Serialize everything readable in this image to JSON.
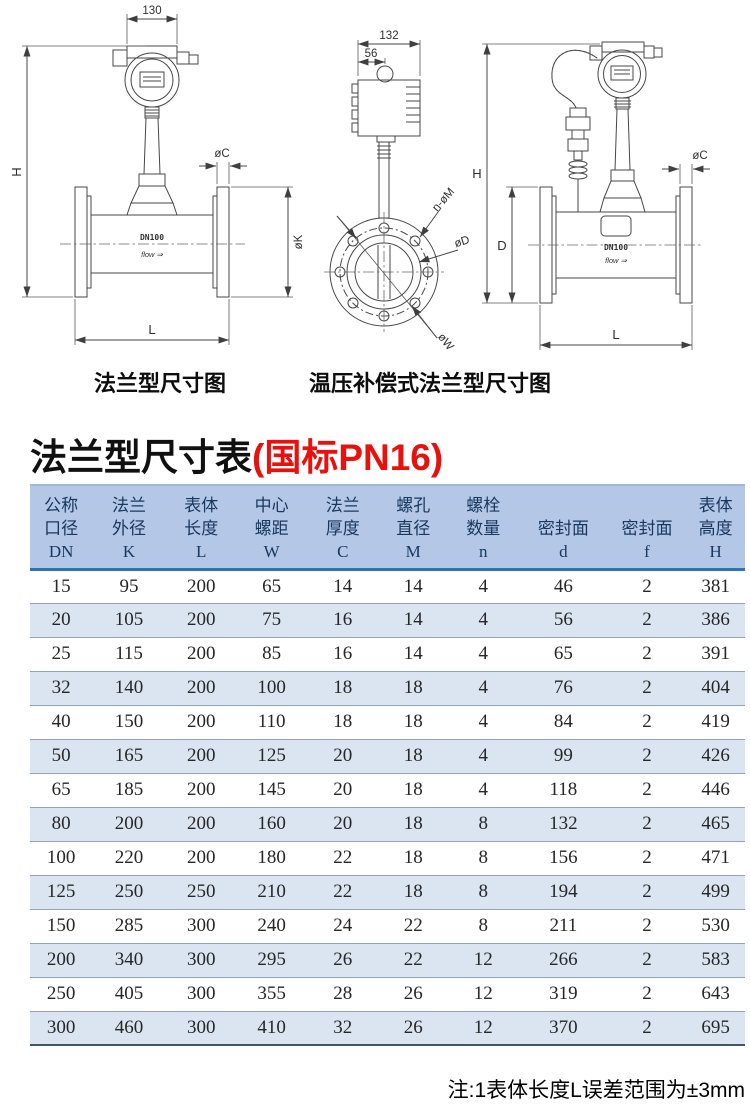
{
  "colors": {
    "header_bg": "#b4c7e7",
    "stripe_bg": "#dbe5f1",
    "header_rule": "#2e74b5",
    "header_text": "#17375e",
    "title_red": "#e8110d"
  },
  "diagrams": {
    "left": {
      "caption": "法兰型尺寸图",
      "body_label": "DN100",
      "flow_label": "flow ⇒",
      "dims": {
        "top_width": "130",
        "height": "H",
        "flange_thickness": "øC",
        "flange_od": "øK",
        "length": "L"
      }
    },
    "middle": {
      "dims": {
        "housing_width": "132",
        "neck_offset": "56",
        "bolt_holes": "n-øM",
        "inner_dia": "øD",
        "bolt_circle": "øW"
      }
    },
    "right": {
      "caption": "温压补偿式法兰型尺寸图",
      "body_label": "DN100",
      "flow_label": "flow ⇒",
      "dims": {
        "height": "H",
        "body_height": "D",
        "flange_thickness": "øC",
        "length": "L"
      }
    }
  },
  "title": {
    "main": "法兰型尺寸表",
    "suffix": "(国标PN16)"
  },
  "table": {
    "columns": [
      {
        "lines": [
          "公称",
          "口径"
        ],
        "letter": "DN"
      },
      {
        "lines": [
          "法兰",
          "外径"
        ],
        "letter": "K"
      },
      {
        "lines": [
          "表体",
          "长度"
        ],
        "letter": "L"
      },
      {
        "lines": [
          "中心",
          "螺距"
        ],
        "letter": "W"
      },
      {
        "lines": [
          "法兰",
          "厚度"
        ],
        "letter": "C"
      },
      {
        "lines": [
          "螺孔",
          "直径"
        ],
        "letter": "M"
      },
      {
        "lines": [
          "螺栓",
          "数量"
        ],
        "letter": "n"
      },
      {
        "lines": [
          "密封面"
        ],
        "letter": "d"
      },
      {
        "lines": [
          "密封面"
        ],
        "letter": "f"
      },
      {
        "lines": [
          "表体",
          "高度"
        ],
        "letter": "H"
      }
    ],
    "rows": [
      [
        "15",
        "95",
        "200",
        "65",
        "14",
        "14",
        "4",
        "46",
        "2",
        "381"
      ],
      [
        "20",
        "105",
        "200",
        "75",
        "16",
        "14",
        "4",
        "56",
        "2",
        "386"
      ],
      [
        "25",
        "115",
        "200",
        "85",
        "16",
        "14",
        "4",
        "65",
        "2",
        "391"
      ],
      [
        "32",
        "140",
        "200",
        "100",
        "18",
        "18",
        "4",
        "76",
        "2",
        "404"
      ],
      [
        "40",
        "150",
        "200",
        "110",
        "18",
        "18",
        "4",
        "84",
        "2",
        "419"
      ],
      [
        "50",
        "165",
        "200",
        "125",
        "20",
        "18",
        "4",
        "99",
        "2",
        "426"
      ],
      [
        "65",
        "185",
        "200",
        "145",
        "20",
        "18",
        "4",
        "118",
        "2",
        "446"
      ],
      [
        "80",
        "200",
        "200",
        "160",
        "20",
        "18",
        "8",
        "132",
        "2",
        "465"
      ],
      [
        "100",
        "220",
        "200",
        "180",
        "22",
        "18",
        "8",
        "156",
        "2",
        "471"
      ],
      [
        "125",
        "250",
        "250",
        "210",
        "22",
        "18",
        "8",
        "194",
        "2",
        "499"
      ],
      [
        "150",
        "285",
        "300",
        "240",
        "24",
        "22",
        "8",
        "211",
        "2",
        "530"
      ],
      [
        "200",
        "340",
        "300",
        "295",
        "26",
        "22",
        "12",
        "266",
        "2",
        "583"
      ],
      [
        "250",
        "405",
        "300",
        "355",
        "28",
        "26",
        "12",
        "319",
        "2",
        "643"
      ],
      [
        "300",
        "460",
        "300",
        "410",
        "32",
        "26",
        "12",
        "370",
        "2",
        "695"
      ]
    ]
  },
  "footnote": "注:1表体长度L误差范围为±3mm"
}
